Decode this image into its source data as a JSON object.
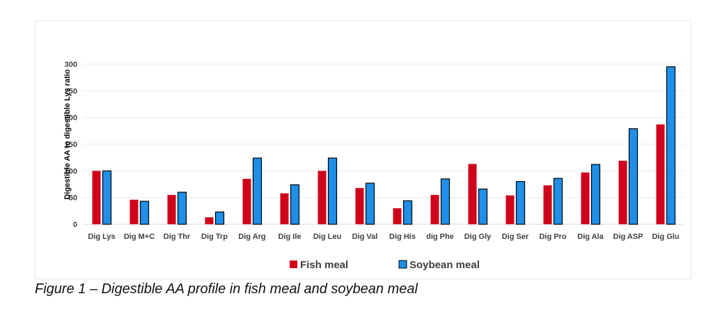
{
  "chart_data": {
    "type": "bar",
    "ylabel": "Digestible AA to digestible Lys ratio",
    "xlabel": "",
    "ylim": [
      0,
      300
    ],
    "yticks": [
      0,
      50,
      100,
      150,
      200,
      250,
      300
    ],
    "grid": true,
    "legend_position": "bottom",
    "categories": [
      "Dig Lys",
      "Dig M+C",
      "Dig Thr",
      "Dig Trp",
      "Dig Arg",
      "Dig Ile",
      "Dig Leu",
      "Dig Val",
      "Dig His",
      "dig Phe",
      "Dig Gly",
      "Dig Ser",
      "Dig Pro",
      "Dig Ala",
      "Dig ASP",
      "Dig Glu"
    ],
    "series": [
      {
        "name": "Fish meal",
        "color": "#d0021b",
        "values": [
          100,
          46,
          55,
          13,
          85,
          58,
          100,
          68,
          30,
          55,
          113,
          54,
          73,
          97,
          119,
          187
        ]
      },
      {
        "name": "Soybean meal",
        "color": "#1f8fe8",
        "values": [
          100,
          43,
          60,
          23,
          124,
          74,
          124,
          77,
          44,
          85,
          66,
          80,
          86,
          112,
          179,
          295
        ]
      }
    ]
  },
  "caption": "Figure 1 – Digestible AA profile in fish meal and soybean meal"
}
